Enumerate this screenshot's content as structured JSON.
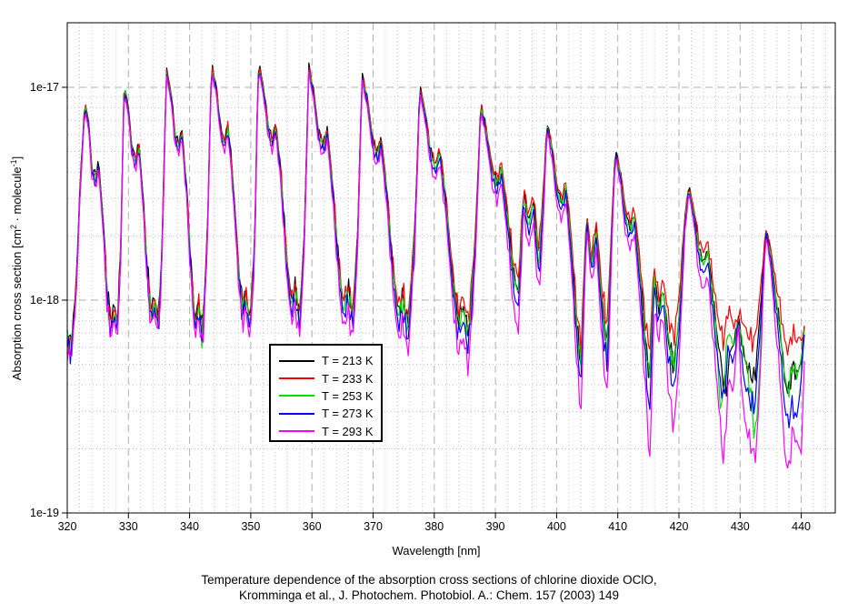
{
  "axes": {
    "x": {
      "label": "Wavelength [nm]",
      "ticks": [
        320,
        330,
        340,
        350,
        360,
        370,
        380,
        390,
        400,
        410,
        420,
        430,
        440
      ],
      "minor_step_nm": 2,
      "min": 320,
      "max": 445.4
    },
    "y": {
      "scale": "log",
      "ticks": [
        {
          "label": "1e-17",
          "exp": -17
        },
        {
          "label": "1e-18",
          "exp": -18
        },
        {
          "label": "1e-19",
          "exp": -19
        }
      ],
      "min": 1e-19,
      "max": 2e-17,
      "label_parts": {
        "p1": "Absorption cross section [cm",
        "s1": "2",
        "p2": " · molecule",
        "s2": "-1",
        "p3": "]"
      }
    }
  },
  "legend": {
    "entries": [
      {
        "label": "T = 213 K",
        "color": "#000000"
      },
      {
        "label": "T = 233 K",
        "color": "#ff0000"
      },
      {
        "label": "T = 253 K",
        "color": "#00dd00"
      },
      {
        "label": "T = 273 K",
        "color": "#0000ff"
      },
      {
        "label": "T = 293 K",
        "color": "#ff00ff"
      }
    ]
  },
  "caption": {
    "line1": "Temperature dependence of the absorption cross sections of chlorine dioxide OClO,",
    "line2": "Kromminga et al., J. Photochem. Photobiol. A.: Chem. 157 (2003) 149"
  },
  "grid": {
    "major_color": "#b0b0b0",
    "minor_color": "#c2c2c2",
    "frame_color": "#000000"
  },
  "chart_data": {
    "type": "line",
    "title": "Temperature dependence of the absorption cross sections of chlorine dioxide OClO",
    "xlabel": "Wavelength [nm]",
    "ylabel": "Absorption cross section [cm^2 molecule^-1]",
    "x_range": [
      320,
      440.5
    ],
    "y_range": [
      1e-19,
      2e-17
    ],
    "y_scale": "log",
    "legend_position": "inside lower-center-left",
    "band_peaks": [
      [
        322.9,
        8.6e-18
      ],
      [
        329.3,
        1.06e-17
      ],
      [
        336.2,
        1.24e-17
      ],
      [
        343.6,
        1.31e-17
      ],
      [
        351.3,
        1.33e-17
      ],
      [
        359.5,
        1.28e-17
      ],
      [
        368.2,
        1.17e-17
      ],
      [
        377.6,
        1.04e-17
      ],
      [
        387.6,
        8.6e-18
      ],
      [
        398.4,
        6.9e-18
      ],
      [
        409.6,
        5.2e-18
      ],
      [
        421.6,
        3.5e-18
      ],
      [
        434.2,
        2.2e-18
      ]
    ],
    "base_spectrum": [
      [
        320.0,
        7e-19
      ],
      [
        320.6,
        6.2e-19
      ],
      [
        321.4,
        1.1e-18
      ],
      [
        321.9,
        2.6e-18
      ],
      [
        322.3,
        4.5e-18
      ],
      [
        322.9,
        8.6e-18
      ],
      [
        323.5,
        6.9e-18
      ],
      [
        324.0,
        4.3e-18
      ],
      [
        324.6,
        3.8e-18
      ],
      [
        325.1,
        4.6e-18
      ],
      [
        325.8,
        2.6e-18
      ],
      [
        326.5,
        1.15e-18
      ],
      [
        327.1,
        8e-19
      ],
      [
        327.7,
        9.5e-19
      ],
      [
        328.2,
        8e-19
      ],
      [
        328.7,
        1.6e-18
      ],
      [
        329.0,
        4.2e-18
      ],
      [
        329.3,
        1.06e-17
      ],
      [
        330.0,
        8e-18
      ],
      [
        330.6,
        5.2e-18
      ],
      [
        331.2,
        4.6e-18
      ],
      [
        331.7,
        5.6e-18
      ],
      [
        332.4,
        3.1e-18
      ],
      [
        333.1,
        1.4e-18
      ],
      [
        333.7,
        9e-19
      ],
      [
        334.3,
        1.05e-18
      ],
      [
        334.9,
        8e-19
      ],
      [
        335.5,
        1.8e-18
      ],
      [
        335.9,
        5.5e-18
      ],
      [
        336.2,
        1.24e-17
      ],
      [
        337.0,
        9.4e-18
      ],
      [
        337.6,
        6.1e-18
      ],
      [
        338.2,
        5.4e-18
      ],
      [
        338.7,
        6.5e-18
      ],
      [
        339.5,
        3.5e-18
      ],
      [
        340.2,
        1.5e-18
      ],
      [
        340.9,
        8e-19
      ],
      [
        341.5,
        1e-18
      ],
      [
        342.1,
        7e-19
      ],
      [
        342.9,
        2e-18
      ],
      [
        343.3,
        6.5e-18
      ],
      [
        343.6,
        1.31e-17
      ],
      [
        344.4,
        1e-17
      ],
      [
        345.1,
        6.4e-18
      ],
      [
        345.7,
        5.6e-18
      ],
      [
        346.3,
        6.8e-18
      ],
      [
        347.1,
        3.7e-18
      ],
      [
        347.9,
        1.6e-18
      ],
      [
        348.6,
        9.5e-19
      ],
      [
        349.2,
        1.1e-18
      ],
      [
        349.9,
        8e-19
      ],
      [
        350.7,
        2.1e-18
      ],
      [
        351.0,
        6.6e-18
      ],
      [
        351.3,
        1.33e-17
      ],
      [
        352.1,
        1e-17
      ],
      [
        352.9,
        6.5e-18
      ],
      [
        353.5,
        5.7e-18
      ],
      [
        354.1,
        6.9e-18
      ],
      [
        355.0,
        3.8e-18
      ],
      [
        355.8,
        1.7e-18
      ],
      [
        356.6,
        1e-18
      ],
      [
        357.3,
        1.15e-18
      ],
      [
        358.0,
        8.5e-19
      ],
      [
        358.8,
        2.2e-18
      ],
      [
        359.2,
        6.4e-18
      ],
      [
        359.5,
        1.28e-17
      ],
      [
        360.3,
        9.6e-18
      ],
      [
        361.1,
        6.2e-18
      ],
      [
        361.9,
        5.4e-18
      ],
      [
        362.5,
        6.5e-18
      ],
      [
        363.4,
        3.5e-18
      ],
      [
        364.3,
        1.6e-18
      ],
      [
        365.1,
        9.5e-19
      ],
      [
        365.9,
        1.15e-18
      ],
      [
        366.7,
        8.5e-19
      ],
      [
        367.5,
        2.2e-18
      ],
      [
        367.9,
        5.8e-18
      ],
      [
        368.2,
        1.17e-17
      ],
      [
        369.1,
        8.8e-18
      ],
      [
        370.0,
        5.6e-18
      ],
      [
        370.7,
        4.9e-18
      ],
      [
        371.3,
        5.9e-18
      ],
      [
        372.3,
        3.2e-18
      ],
      [
        373.2,
        1.45e-18
      ],
      [
        374.1,
        8.8e-19
      ],
      [
        374.9,
        1.05e-18
      ],
      [
        375.7,
        7.5e-19
      ],
      [
        376.8,
        2.1e-18
      ],
      [
        377.3,
        5.2e-18
      ],
      [
        377.6,
        1.04e-17
      ],
      [
        378.5,
        7.8e-18
      ],
      [
        379.4,
        5e-18
      ],
      [
        380.2,
        4.3e-18
      ],
      [
        380.9,
        5.2e-18
      ],
      [
        382.0,
        2.8e-18
      ],
      [
        383.0,
        1.3e-18
      ],
      [
        383.9,
        8e-19
      ],
      [
        384.7,
        9.5e-19
      ],
      [
        385.6,
        7e-19
      ],
      [
        386.7,
        1.9e-18
      ],
      [
        387.2,
        4.3e-18
      ],
      [
        387.6,
        8.6e-18
      ],
      [
        388.5,
        6.4e-18
      ],
      [
        389.5,
        4.1e-18
      ],
      [
        390.3,
        3.6e-18
      ],
      [
        391.0,
        4.3e-18
      ],
      [
        392.1,
        2.3e-18
      ],
      [
        393.0,
        1.3e-18
      ],
      [
        393.8,
        1.1e-18
      ],
      [
        394.6,
        3.3e-18
      ],
      [
        395.4,
        2.3e-18
      ],
      [
        396.2,
        3e-18
      ],
      [
        397.1,
        1.5e-18
      ],
      [
        398.0,
        3.8e-18
      ],
      [
        398.4,
        6.9e-18
      ],
      [
        399.3,
        5.2e-18
      ],
      [
        400.1,
        3.3e-18
      ],
      [
        400.9,
        2.9e-18
      ],
      [
        401.5,
        3.5e-18
      ],
      [
        402.4,
        1.9e-18
      ],
      [
        403.3,
        7.5e-19
      ],
      [
        404.0,
        5e-19
      ],
      [
        404.9,
        2.6e-18
      ],
      [
        405.7,
        1.5e-18
      ],
      [
        406.5,
        2.2e-18
      ],
      [
        407.5,
        9e-19
      ],
      [
        408.3,
        6e-19
      ],
      [
        409.0,
        2.2e-18
      ],
      [
        409.6,
        5.2e-18
      ],
      [
        410.5,
        3.9e-18
      ],
      [
        411.3,
        2.5e-18
      ],
      [
        412.1,
        2.2e-18
      ],
      [
        412.7,
        2.6e-18
      ],
      [
        413.6,
        1.4e-18
      ],
      [
        414.5,
        6.5e-19
      ],
      [
        415.2,
        4.2e-19
      ],
      [
        415.9,
        1.35e-18
      ],
      [
        416.7,
        9e-19
      ],
      [
        417.4,
        1.15e-18
      ],
      [
        418.3,
        6.5e-19
      ],
      [
        419.2,
        4.8e-19
      ],
      [
        420.1,
        9e-19
      ],
      [
        420.9,
        2.3e-18
      ],
      [
        421.6,
        3.5e-18
      ],
      [
        422.5,
        2.6e-18
      ],
      [
        423.3,
        1.7e-18
      ],
      [
        424.1,
        1.5e-18
      ],
      [
        424.7,
        1.75e-18
      ],
      [
        425.6,
        1e-18
      ],
      [
        426.5,
        6e-19
      ],
      [
        427.3,
        4.4e-19
      ],
      [
        428.1,
        7.5e-19
      ],
      [
        428.9,
        6e-19
      ],
      [
        429.7,
        8.5e-19
      ],
      [
        430.6,
        5.5e-19
      ],
      [
        431.5,
        4.6e-19
      ],
      [
        432.4,
        4.2e-19
      ],
      [
        433.3,
        9e-19
      ],
      [
        434.2,
        2.2e-18
      ],
      [
        435.0,
        1.7e-18
      ],
      [
        435.8,
        1.05e-18
      ],
      [
        436.5,
        7.5e-19
      ],
      [
        437.3,
        4.2e-19
      ],
      [
        437.9,
        3.6e-19
      ],
      [
        438.6,
        5e-19
      ],
      [
        439.3,
        4.4e-19
      ],
      [
        440.0,
        5.2e-19
      ],
      [
        440.5,
        7.5e-19
      ]
    ],
    "series": [
      {
        "name": "T = 213 K",
        "color": "#000000",
        "peak_factor": 1.0,
        "valley_factor_320": 1.0,
        "valley_factor_440": 1.0,
        "extra_dips": [
          [
            427.9,
            0.5,
            0.62
          ]
        ]
      },
      {
        "name": "T = 233 K",
        "color": "#ff0000",
        "peak_factor": 0.985,
        "valley_factor_320": 0.96,
        "valley_factor_440": 1.6,
        "extra_dips": []
      },
      {
        "name": "T = 253 K",
        "color": "#00dd00",
        "peak_factor": 0.962,
        "valley_factor_320": 0.92,
        "valley_factor_440": 1.02,
        "extra_dips": [
          [
            426.8,
            0.5,
            0.6
          ],
          [
            432.7,
            0.9,
            0.5
          ]
        ]
      },
      {
        "name": "T = 273 K",
        "color": "#0000ff",
        "peak_factor": 0.942,
        "valley_factor_320": 0.885,
        "valley_factor_440": 0.72,
        "extra_dips": [
          [
            415.2,
            0.4,
            0.85
          ],
          [
            439.0,
            0.6,
            0.8
          ]
        ]
      },
      {
        "name": "T = 293 K",
        "color": "#ff00ff",
        "peak_factor": 0.915,
        "valley_factor_320": 0.84,
        "valley_factor_440": 0.42,
        "extra_dips": [
          [
            415.4,
            0.5,
            0.7
          ],
          [
            427.4,
            0.7,
            0.8
          ],
          [
            433.0,
            0.6,
            0.75
          ],
          [
            440.1,
            0.5,
            0.6
          ]
        ]
      }
    ]
  }
}
